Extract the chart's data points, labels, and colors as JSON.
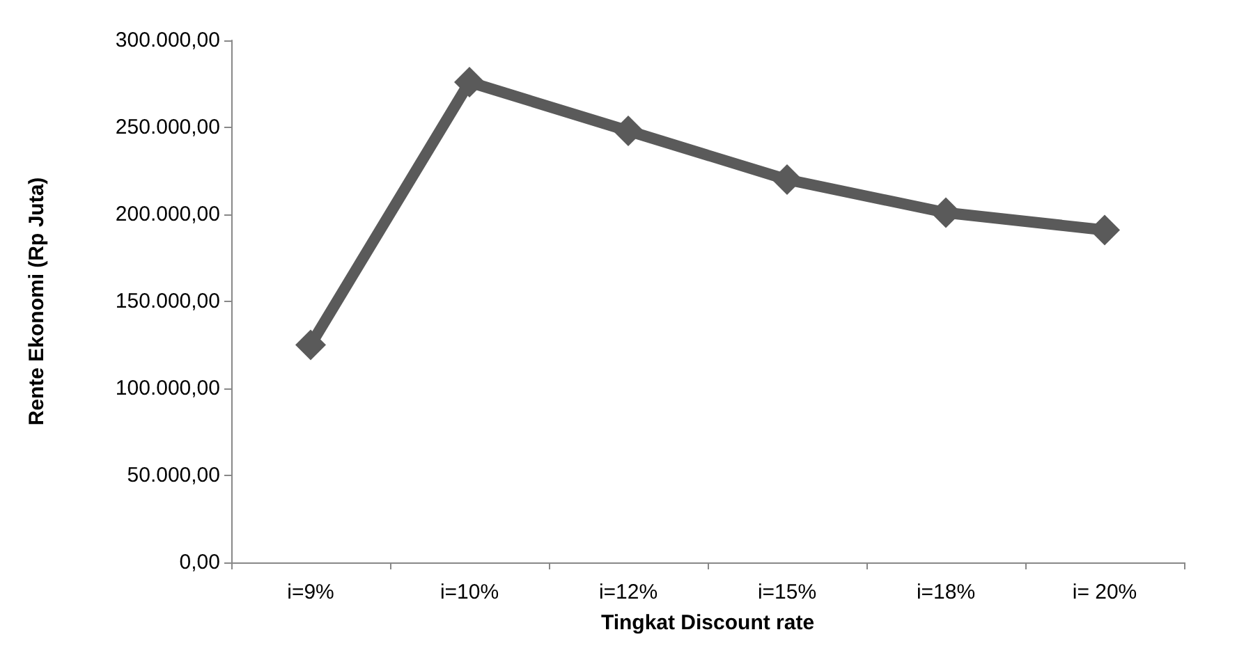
{
  "chart_data": {
    "type": "line",
    "xlabel": "Tingkat Discount rate",
    "ylabel": "Rente Ekonomi (Rp Juta)",
    "categories": [
      "i=9%",
      "i=10%",
      "i=12%",
      "i=15%",
      "i=18%",
      "i= 20%"
    ],
    "series": [
      {
        "color": "#5a5a5a",
        "values": [
          125000,
          276000,
          248000,
          220000,
          201000,
          191000
        ]
      }
    ],
    "ylim": [
      0,
      300000
    ],
    "yticks": [
      {
        "value": 0,
        "label": "0,00"
      },
      {
        "value": 50000,
        "label": "50.000,00"
      },
      {
        "value": 100000,
        "label": "100.000,00"
      },
      {
        "value": 150000,
        "label": "150.000,00"
      },
      {
        "value": 200000,
        "label": "200.000,00"
      },
      {
        "value": 250000,
        "label": "250.000,00"
      },
      {
        "value": 300000,
        "label": "300.000,00"
      }
    ],
    "grid": false,
    "marker": "diamond",
    "line_style": "solid"
  }
}
